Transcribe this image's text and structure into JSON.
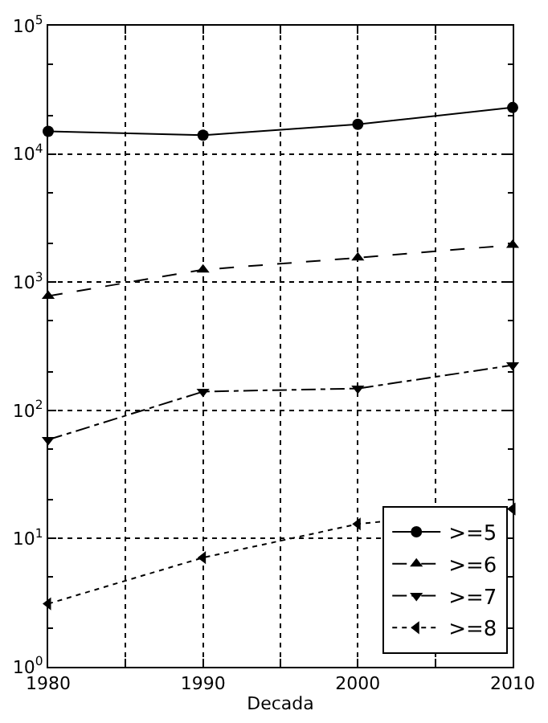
{
  "chart_data": {
    "type": "line",
    "xlabel": "Decada",
    "x": [
      1980,
      1990,
      2000,
      2010
    ],
    "series": [
      {
        "name": ">=5",
        "color": "#000000",
        "marker": "circle",
        "line_style": "solid",
        "values": [
          15000,
          14000,
          17000,
          23000
        ]
      },
      {
        "name": ">=6",
        "color": "#000000",
        "marker": "triangle-up",
        "line_style": "dashed",
        "values": [
          780,
          1250,
          1550,
          1950
        ]
      },
      {
        "name": ">=7",
        "color": "#000000",
        "marker": "triangle-down",
        "line_style": "dashdot",
        "values": [
          59,
          140,
          148,
          225
        ]
      },
      {
        "name": ">=8",
        "color": "#000000",
        "marker": "triangle-left",
        "line_style": "dotted",
        "values": [
          3.1,
          7.1,
          13,
          17
        ]
      }
    ],
    "log": "y",
    "xlim": [
      1980,
      2010
    ],
    "xticks": [
      1980,
      {
        "value": 1985,
        "label": null
      },
      1990,
      {
        "value": 1995,
        "label": null
      },
      2000,
      {
        "value": 2005,
        "label": null
      },
      2010
    ],
    "ylim": [
      1,
      100000
    ],
    "yticks": [
      {
        "value": 1,
        "label": "10$^{0}$"
      },
      {
        "value": 10,
        "label": "10$^{1}$"
      },
      {
        "value": 100,
        "label": "10$^{2}$"
      },
      {
        "value": 1000,
        "label": "10$^{3}$"
      },
      {
        "value": 10000,
        "label": "10$^{4}$"
      },
      {
        "value": 100000,
        "label": "10$^{5}$"
      }
    ],
    "grid": true,
    "legend": "bottom right"
  }
}
